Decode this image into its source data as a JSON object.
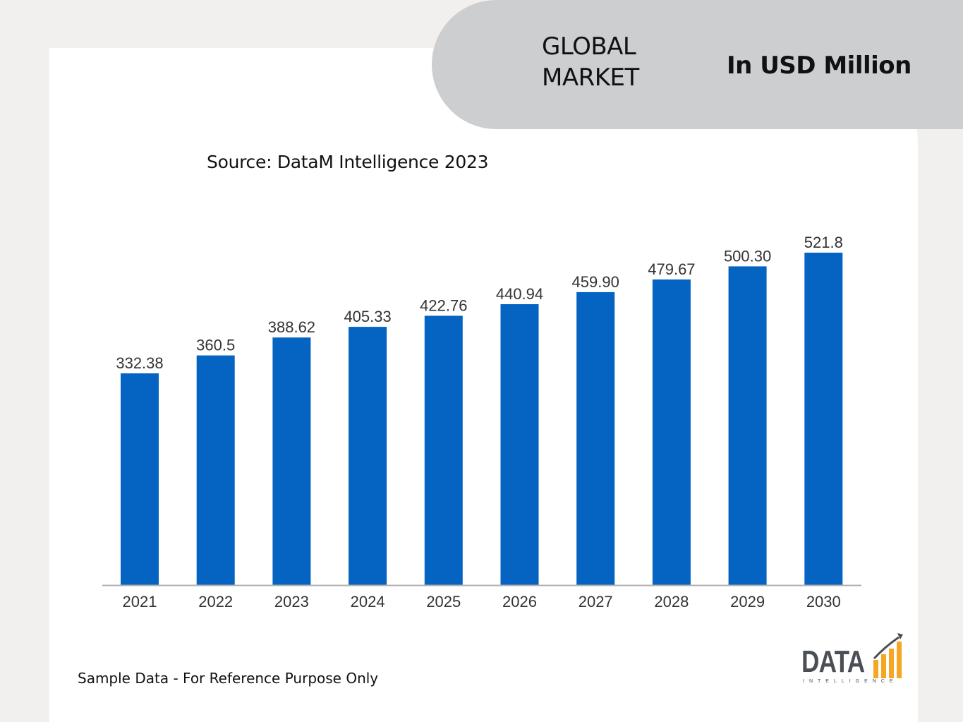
{
  "header": {
    "market_label": "GLOBAL MARKET",
    "unit_label": "In USD Million"
  },
  "source": "Source: DataM Intelligence 2023",
  "footnote": "Sample Data - For Reference Purpose Only",
  "logo": {
    "word": "DATA",
    "sub": "INTELLIGENCE"
  },
  "colors": {
    "bar": "#0563c1",
    "axis": "#b0b0b0",
    "header_pill": "#ccced0",
    "logo_orange": "#f5a623"
  },
  "chart_data": {
    "type": "bar",
    "categories": [
      "2021",
      "2022",
      "2023",
      "2024",
      "2025",
      "2026",
      "2027",
      "2028",
      "2029",
      "2030"
    ],
    "values": [
      332.38,
      360.5,
      388.62,
      405.33,
      422.76,
      440.94,
      459.9,
      479.67,
      500.3,
      521.8
    ],
    "value_labels": [
      "332.38",
      "360.5",
      "388.62",
      "405.33",
      "422.76",
      "440.94",
      "459.90",
      "479.67",
      "500.30",
      "521.8"
    ],
    "ylim": [
      0,
      521.8
    ],
    "grid": false,
    "legend": "none"
  }
}
